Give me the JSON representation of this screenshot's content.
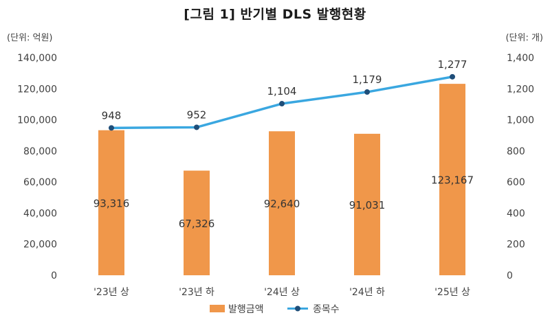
{
  "title": "[그림 1] 반기별 DLS 발행현황",
  "unit_left": "(단위: 억원)",
  "unit_right": "(단위: 개)",
  "chart_data": {
    "type": "bar+line",
    "title": "[그림 1] 반기별 DLS 발행현황",
    "categories": [
      "'23년 상",
      "'23년 하",
      "'24년 상",
      "'24년 하",
      "'25년 상"
    ],
    "series": [
      {
        "name": "발행금액",
        "type": "bar",
        "axis": "left",
        "values": [
          93316,
          67326,
          92640,
          91031,
          123167
        ],
        "labels": [
          "93,316",
          "67,326",
          "92,640",
          "91,031",
          "123,167"
        ],
        "color": "#F0974A"
      },
      {
        "name": "종목수",
        "type": "line",
        "axis": "right",
        "values": [
          948,
          952,
          1104,
          1179,
          1277
        ],
        "labels": [
          "948",
          "952",
          "1,104",
          "1,179",
          "1,277"
        ],
        "color": "#3AA7E0",
        "marker_color": "#1F4E79"
      }
    ],
    "y_left": {
      "min": 0,
      "max": 140000,
      "ticks": [
        "0",
        "20,000",
        "40,000",
        "60,000",
        "80,000",
        "100,000",
        "120,000",
        "140,000"
      ]
    },
    "y_right": {
      "min": 0,
      "max": 1400,
      "ticks": [
        "0",
        "200",
        "400",
        "600",
        "800",
        "1,000",
        "1,200",
        "1,400"
      ]
    },
    "legend_position": "bottom"
  }
}
